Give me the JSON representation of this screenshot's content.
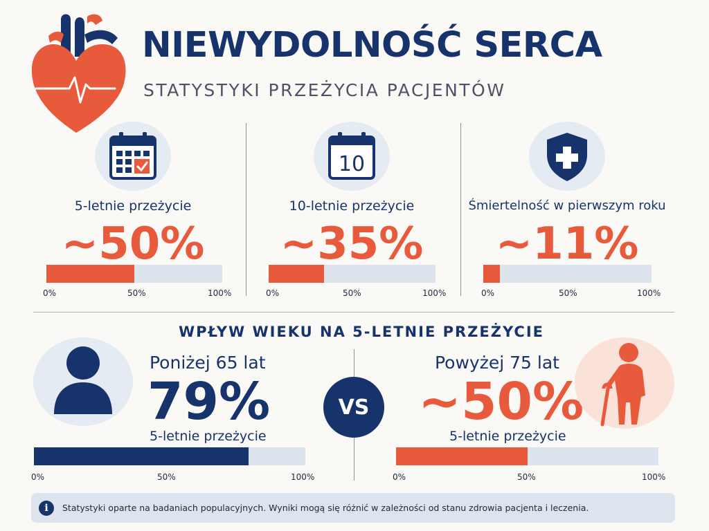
{
  "header": {
    "title": "NIEWYDOLNOŚĆ SERCA",
    "subtitle": "STATYSTYKI PRZEŻYCIA PACJENTÓW"
  },
  "stats": [
    {
      "label": "5-letnie przeżycie",
      "value": "~50%",
      "calendar_text": "",
      "fill_percent": 50,
      "icon": "calendar-check-icon",
      "ticks": [
        "0%",
        "50%",
        "100%"
      ]
    },
    {
      "label": "10-letnie przeżycie",
      "value": "~35%",
      "calendar_text": "10",
      "fill_percent": 33,
      "icon": "calendar-10-icon",
      "ticks": [
        "0%",
        "50%",
        "100%"
      ]
    },
    {
      "label": "Śmiertelność w pierwszym roku",
      "value": "~11%",
      "fill_percent": 10,
      "icon": "shield-cross-icon",
      "ticks": [
        "0%",
        "50%",
        "100%"
      ]
    }
  ],
  "age_section": {
    "title": "WPŁYW WIEKU NA 5-LETNIE PRZEŻYCIE",
    "vs": "VS",
    "left": {
      "label": "Poniżej 65 lat",
      "value": "79%",
      "sub": "5-letnie przeżycie",
      "fill_percent": 79,
      "ticks": [
        "0%",
        "50%",
        "100%"
      ],
      "icon": "person-icon"
    },
    "right": {
      "label": "Powyżej 75 lat",
      "value": "~50%",
      "sub": "5-letnie przeżycie",
      "fill_percent": 50,
      "ticks": [
        "0%",
        "50%",
        "100%"
      ],
      "icon": "elderly-person-icon"
    }
  },
  "note": {
    "icon": "info-icon",
    "icon_glyph": "i",
    "text": "Statystyki oparte na badaniach populacyjnych. Wyniki mogą się różnić w zależności od stanu zdrowia pacjenta i leczenia."
  },
  "colors": {
    "navy": "#17336b",
    "accent": "#e85a3c",
    "track": "#dce3ec",
    "background": "#fbf9f5"
  }
}
